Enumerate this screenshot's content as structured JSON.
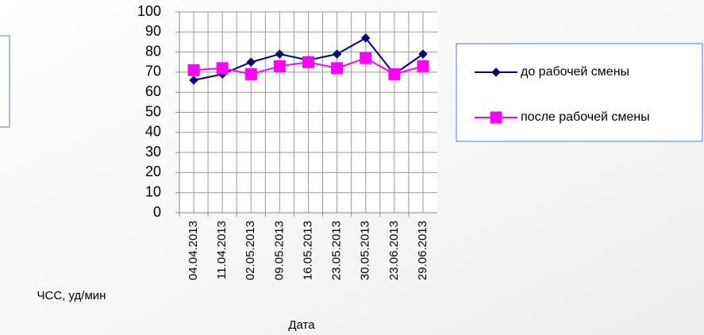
{
  "chart_data": {
    "type": "line",
    "x_label": "Дата",
    "y_label": "ЧСС, уд/мин",
    "categories": [
      "04.04.2013",
      "11.04.2013",
      "02.05.2013",
      "09.05.2013",
      "16.05.2013",
      "23.05.2013",
      "30.05.2013",
      "23.06.2013",
      "29.06.2013"
    ],
    "series": [
      {
        "name": "до рабочей смены",
        "color": "#000080",
        "marker": "diamond",
        "values": [
          66,
          69,
          75,
          79,
          76,
          79,
          87,
          69,
          79
        ]
      },
      {
        "name": "после рабочей смены",
        "color": "#ff00ff",
        "marker": "square",
        "values": [
          71,
          72,
          69,
          73,
          75,
          72,
          77,
          69,
          73
        ]
      }
    ],
    "ylim": [
      0,
      100
    ],
    "yticks": [
      0,
      10,
      20,
      30,
      40,
      50,
      60,
      70,
      80,
      90,
      100
    ],
    "grid": true,
    "legend": "right"
  }
}
